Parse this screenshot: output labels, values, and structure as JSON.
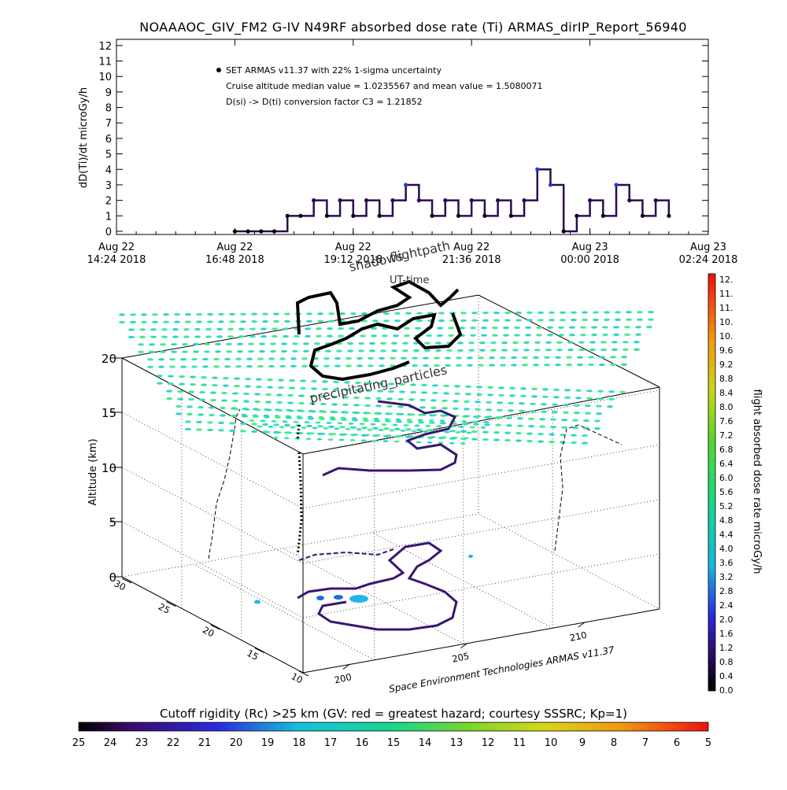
{
  "title": "NOAAAOC_GIV_FM2 G-IV   N49RF  absorbed dose rate (Ti) ARMAS_dirIP_Report_56940",
  "colors": {
    "dose_line": "#2b0a54",
    "marker": "#1a3fd6",
    "dark": "#000000",
    "particles": "#2ee0a0",
    "ground_marker": "#23b5e8"
  },
  "legend": {
    "line1": "SET ARMAS v11.37 with 22% 1-sigma uncertainty",
    "line2": "Cruise altitude median value = 1.0235567 and mean value = 1.5080071",
    "line3": "D(si) -> D(ti) conversion factor C3 = 1.21852"
  },
  "chart3d": {
    "label_shadows": "shadows",
    "label_flightpath": "flightpath",
    "label_uttime": "UT-time",
    "label_particles": "precipitating_particles",
    "zlabel": "Altitude (km)",
    "zticks": [
      "0",
      "5",
      "10",
      "15",
      "20"
    ],
    "lat_ticks": [
      "30",
      "25",
      "20",
      "15",
      "10"
    ],
    "lon_ticks": [
      "200",
      "205",
      "210"
    ],
    "credit": "Space Environment Technologies ARMAS v11.37"
  },
  "colorbar_right": {
    "label": "flight absorbed dose rate microGy/h",
    "ticks": [
      "12.",
      "11.",
      "11.",
      "10.",
      "10.",
      "9.6",
      "9.2",
      "8.8",
      "8.4",
      "8.0",
      "7.6",
      "7.2",
      "6.8",
      "6.4",
      "6.0",
      "5.6",
      "5.2",
      "4.8",
      "4.4",
      "4.0",
      "3.6",
      "3.2",
      "2.8",
      "2.4",
      "2.0",
      "1.6",
      "1.2",
      "0.8",
      "0.4",
      "0.0"
    ]
  },
  "colorbar_bottom": {
    "label": "Cutoff rigidity (Rc) >25 km (GV: red = greatest hazard; courtesy SSSRC; Kp=1)",
    "ticks": [
      "25",
      "24",
      "23",
      "22",
      "21",
      "20",
      "19",
      "18",
      "17",
      "16",
      "15",
      "14",
      "13",
      "12",
      "11",
      "10",
      "9",
      "8",
      "7",
      "6",
      "5"
    ]
  },
  "chart_data": {
    "type": "line",
    "title": "NOAAAOC_GIV_FM2 G-IV   N49RF  absorbed dose rate (Ti) ARMAS_dirIP_Report_56940",
    "ylabel": "dD(Ti)/dt microGy/h",
    "xlabel": "",
    "ylim": [
      0,
      12
    ],
    "yticks": [
      "0",
      "1",
      "2",
      "3",
      "4",
      "5",
      "6",
      "7",
      "8",
      "9",
      "10",
      "11",
      "12"
    ],
    "x_tick_labels": [
      [
        "Aug 22",
        "14:24 2018"
      ],
      [
        "Aug 22",
        "16:48 2018"
      ],
      [
        "Aug 22",
        "19:12 2018"
      ],
      [
        "Aug 22",
        "21:36 2018"
      ],
      [
        "Aug 23",
        "00:00 2018"
      ],
      [
        "Aug 23",
        "02:24 2018"
      ]
    ],
    "xlim_minutes": [
      0,
      720
    ],
    "x_minutes": [
      144,
      160,
      176,
      192,
      208,
      224,
      240,
      256,
      272,
      288,
      304,
      320,
      336,
      352,
      368,
      384,
      400,
      416,
      432,
      448,
      464,
      480,
      496,
      512,
      528,
      544,
      560,
      576,
      592,
      608,
      624,
      640,
      656,
      672
    ],
    "series_values": [
      0,
      0,
      0,
      0,
      1,
      1,
      2,
      1,
      2,
      1,
      2,
      1,
      2,
      3,
      2,
      1,
      2,
      1,
      2,
      1,
      2,
      1,
      2,
      4,
      3,
      0,
      1,
      2,
      1,
      3,
      2,
      1,
      2,
      1
    ]
  }
}
